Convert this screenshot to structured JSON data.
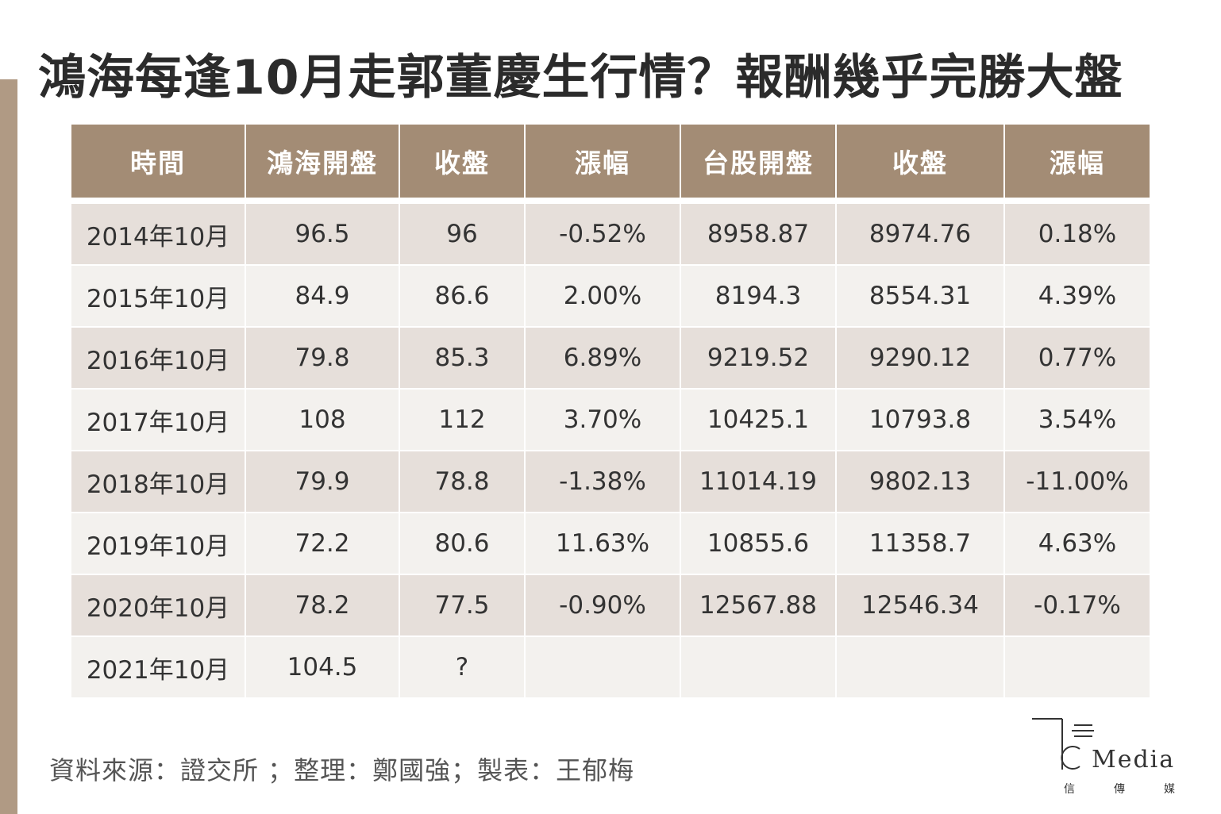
{
  "title": "鴻海每逢10月走郭董慶生行情？報酬幾乎完勝大盤",
  "table": {
    "headers": [
      "時間",
      "鴻海開盤",
      "收盤",
      "漲幅",
      "台股開盤",
      "收盤",
      "漲幅"
    ],
    "rows": [
      [
        "2014年10月",
        "96.5",
        "96",
        "-0.52%",
        "8958.87",
        "8974.76",
        "0.18%"
      ],
      [
        "2015年10月",
        "84.9",
        "86.6",
        "2.00%",
        "8194.3",
        "8554.31",
        "4.39%"
      ],
      [
        "2016年10月",
        "79.8",
        "85.3",
        "6.89%",
        "9219.52",
        "9290.12",
        "0.77%"
      ],
      [
        "2017年10月",
        "108",
        "112",
        "3.70%",
        "10425.1",
        "10793.8",
        "3.54%"
      ],
      [
        "2018年10月",
        "79.9",
        "78.8",
        "-1.38%",
        "11014.19",
        "9802.13",
        "-11.00%"
      ],
      [
        "2019年10月",
        "72.2",
        "80.6",
        "11.63%",
        "10855.6",
        "11358.7",
        "4.63%"
      ],
      [
        "2020年10月",
        "78.2",
        "77.5",
        "-0.90%",
        "12567.88",
        "12546.34",
        "-0.17%"
      ],
      [
        "2021年10月",
        "104.5",
        "?",
        "",
        "",
        "",
        ""
      ]
    ]
  },
  "source": "資料來源：證交所 ；整理：鄭國強；製表：王郁梅",
  "logo": {
    "wordmark": "Media",
    "subtitle": [
      "信",
      "傳",
      "媒"
    ]
  },
  "colors": {
    "header_bg": "#a38c75",
    "row_odd": "#e6dfda",
    "row_even": "#f3f1ee",
    "side_bar": "#b09a84"
  }
}
